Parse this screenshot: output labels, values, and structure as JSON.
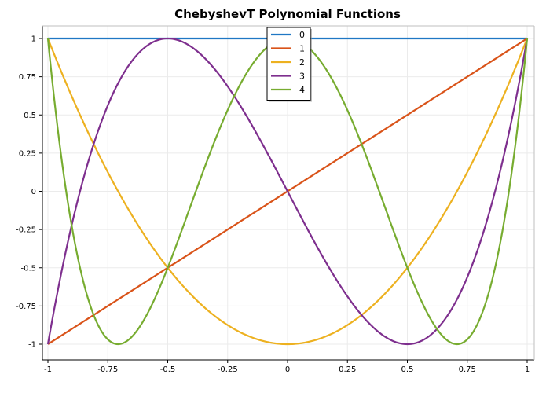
{
  "chart_data": {
    "type": "line",
    "title": "ChebyshevT Polynomial Functions",
    "xlabel": "",
    "ylabel": "",
    "xlim": [
      -1,
      1
    ],
    "ylim": [
      -1,
      1
    ],
    "grid": true,
    "legend_position": "top-center",
    "x_ticks": [
      {
        "value": -1,
        "label": "-1"
      },
      {
        "value": -0.75,
        "label": "-0.75"
      },
      {
        "value": -0.5,
        "label": "-0.5"
      },
      {
        "value": -0.25,
        "label": "-0.25"
      },
      {
        "value": 0,
        "label": "0"
      },
      {
        "value": 0.25,
        "label": "0.25"
      },
      {
        "value": 0.5,
        "label": "0.5"
      },
      {
        "value": 0.75,
        "label": "0.75"
      },
      {
        "value": 1,
        "label": "1"
      }
    ],
    "y_ticks": [
      {
        "value": 1,
        "label": "1"
      },
      {
        "value": 0.75,
        "label": "0.75"
      },
      {
        "value": 0.5,
        "label": "0.5"
      },
      {
        "value": 0.25,
        "label": "0.25"
      },
      {
        "value": 0,
        "label": "0"
      },
      {
        "value": -0.25,
        "label": "-0.25"
      },
      {
        "value": -0.5,
        "label": "-0.5"
      },
      {
        "value": -0.75,
        "label": "-0.75"
      },
      {
        "value": -1,
        "label": "-1"
      }
    ],
    "x": [
      -1,
      -0.9,
      -0.8,
      -0.75,
      -0.7,
      -0.6,
      -0.5,
      -0.4,
      -0.3,
      -0.25,
      -0.2,
      -0.1,
      0,
      0.1,
      0.2,
      0.25,
      0.3,
      0.4,
      0.5,
      0.6,
      0.7,
      0.75,
      0.8,
      0.9,
      1
    ],
    "series": [
      {
        "name": "0",
        "color": "#1f77c4",
        "values": [
          1,
          1,
          1,
          1,
          1,
          1,
          1,
          1,
          1,
          1,
          1,
          1,
          1,
          1,
          1,
          1,
          1,
          1,
          1,
          1,
          1,
          1,
          1,
          1,
          1
        ]
      },
      {
        "name": "1",
        "color": "#d95319",
        "values": [
          -1,
          -0.9,
          -0.8,
          -0.75,
          -0.7,
          -0.6,
          -0.5,
          -0.4,
          -0.3,
          -0.25,
          -0.2,
          -0.1,
          0,
          0.1,
          0.2,
          0.25,
          0.3,
          0.4,
          0.5,
          0.6,
          0.7,
          0.75,
          0.8,
          0.9,
          1
        ]
      },
      {
        "name": "2",
        "color": "#edb120",
        "values": [
          1,
          0.62,
          0.28,
          0.125,
          -0.02,
          -0.28,
          -0.5,
          -0.68,
          -0.82,
          -0.875,
          -0.92,
          -0.98,
          -1,
          -0.98,
          -0.92,
          -0.875,
          -0.82,
          -0.68,
          -0.5,
          -0.28,
          -0.02,
          0.125,
          0.28,
          0.62,
          1
        ]
      },
      {
        "name": "3",
        "color": "#7e2f8e",
        "values": [
          -1,
          -0.216,
          0.352,
          0.5625,
          0.728,
          0.936,
          1,
          0.944,
          0.792,
          0.6875,
          0.568,
          0.296,
          0,
          -0.296,
          -0.568,
          -0.6875,
          -0.792,
          -0.944,
          -1,
          -0.936,
          -0.728,
          -0.5625,
          -0.352,
          0.216,
          1
        ]
      },
      {
        "name": "4",
        "color": "#77ac30",
        "values": [
          1,
          -0.4232,
          -0.9152,
          -0.96875,
          -0.9992,
          -0.8528,
          -0.5,
          -0.0752,
          0.3448,
          0.53125,
          0.6928,
          0.9208,
          1,
          0.9208,
          0.6928,
          0.53125,
          0.3448,
          -0.0752,
          -0.5,
          -0.8528,
          -0.9992,
          -0.96875,
          -0.9152,
          -0.4232,
          1
        ]
      }
    ]
  }
}
